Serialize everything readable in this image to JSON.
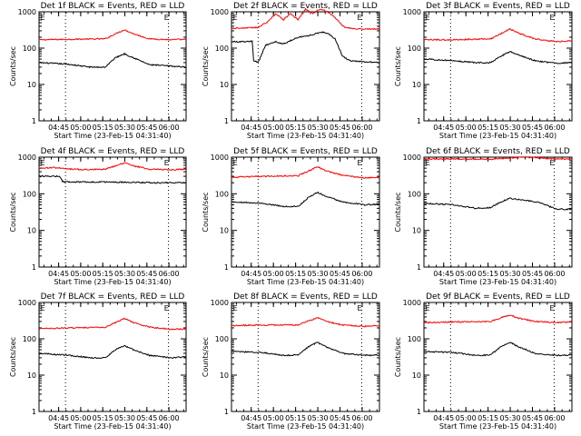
{
  "figure": {
    "background": "#ffffff"
  },
  "colors": {
    "events": "#000000",
    "lld": "#ff0000",
    "axes": "#000000"
  },
  "chart_data": [
    {
      "type": "line",
      "title": "Det 1f BLACK = Events, RED = LLD",
      "xlabel": "Start Time (23-Feb-15 04:31:40)",
      "ylabel": "Counts/sec",
      "yscale": "log",
      "ylim": [
        1,
        1000
      ],
      "y_ticks": [
        1,
        10,
        100,
        1000
      ],
      "x_ticks": [
        "04:45",
        "05:00",
        "05:15",
        "05:30",
        "05:45",
        "06:00"
      ],
      "x_tick_minutes": [
        13.33,
        28.33,
        43.33,
        58.33,
        73.33,
        88.33
      ],
      "xlim_minutes": [
        0,
        100
      ],
      "vlines_minutes": [
        18,
        88
      ],
      "top_marks": [
        "E",
        "E"
      ],
      "top_mark_minutes": [
        1,
        85
      ],
      "grid": false,
      "series": [
        {
          "color": "#ff0000",
          "x_minutes": [
            0,
            20,
            45,
            52,
            58,
            64,
            75,
            90,
            100
          ],
          "values": [
            170,
            175,
            180,
            250,
            320,
            250,
            180,
            170,
            175
          ]
        },
        {
          "color": "#000000",
          "x_minutes": [
            0,
            20,
            35,
            45,
            52,
            58,
            64,
            75,
            90,
            100
          ],
          "values": [
            40,
            36,
            30,
            30,
            55,
            70,
            55,
            35,
            32,
            30
          ]
        }
      ]
    },
    {
      "type": "line",
      "title": "Det 2f BLACK = Events, RED = LLD",
      "xlabel": "Start Time (23-Feb-15 04:31:40)",
      "ylabel": "Counts/sec",
      "yscale": "log",
      "ylim": [
        1,
        1000
      ],
      "y_ticks": [
        1,
        10,
        100,
        1000
      ],
      "x_ticks": [
        "04:45",
        "05:00",
        "05:15",
        "05:30",
        "05:45",
        "06:00"
      ],
      "x_tick_minutes": [
        13.33,
        28.33,
        43.33,
        58.33,
        73.33,
        88.33
      ],
      "xlim_minutes": [
        0,
        100
      ],
      "vlines_minutes": [
        18,
        88
      ],
      "top_marks": [
        "E",
        "E"
      ],
      "top_mark_minutes": [
        1,
        85
      ],
      "grid": false,
      "series": [
        {
          "color": "#ff0000",
          "x_minutes": [
            0,
            10,
            18,
            25,
            30,
            35,
            40,
            45,
            50,
            55,
            60,
            65,
            70,
            75,
            80,
            90,
            100
          ],
          "values": [
            350,
            360,
            370,
            550,
            900,
            600,
            900,
            600,
            1200,
            900,
            1200,
            1000,
            700,
            400,
            350,
            330,
            340
          ]
        },
        {
          "color": "#000000",
          "x_minutes": [
            0,
            10,
            14,
            15,
            17,
            18,
            23,
            30,
            35,
            45,
            55,
            60,
            65,
            70,
            75,
            80,
            90,
            100
          ],
          "values": [
            150,
            150,
            155,
            45,
            42,
            40,
            120,
            150,
            130,
            200,
            230,
            280,
            260,
            180,
            60,
            45,
            42,
            40
          ]
        }
      ]
    },
    {
      "type": "line",
      "title": "Det 3f BLACK = Events, RED = LLD",
      "xlabel": "Start Time (23-Feb-15 04:31:40)",
      "ylabel": "Counts/sec",
      "yscale": "log",
      "ylim": [
        1,
        1000
      ],
      "y_ticks": [
        1,
        10,
        100,
        1000
      ],
      "x_ticks": [
        "04:45",
        "05:00",
        "05:15",
        "05:30",
        "05:45",
        "06:00"
      ],
      "x_tick_minutes": [
        13.33,
        28.33,
        43.33,
        58.33,
        73.33,
        88.33
      ],
      "xlim_minutes": [
        0,
        100
      ],
      "vlines_minutes": [
        18,
        88
      ],
      "top_marks": [
        "E",
        "E"
      ],
      "top_mark_minutes": [
        1,
        85
      ],
      "grid": false,
      "series": [
        {
          "color": "#ff0000",
          "x_minutes": [
            0,
            20,
            45,
            52,
            58,
            64,
            75,
            90,
            100
          ],
          "values": [
            170,
            170,
            180,
            250,
            340,
            260,
            180,
            150,
            160
          ]
        },
        {
          "color": "#000000",
          "x_minutes": [
            0,
            20,
            35,
            45,
            52,
            58,
            64,
            75,
            90,
            100
          ],
          "values": [
            50,
            45,
            40,
            40,
            60,
            80,
            65,
            45,
            38,
            40
          ]
        }
      ]
    },
    {
      "type": "line",
      "title": "Det 4f BLACK = Events, RED = LLD",
      "xlabel": "Start Time (23-Feb-15 04:31:40)",
      "ylabel": "Counts/sec",
      "yscale": "log",
      "ylim": [
        1,
        1000
      ],
      "y_ticks": [
        1,
        10,
        100,
        1000
      ],
      "x_ticks": [
        "04:45",
        "05:00",
        "05:15",
        "05:30",
        "05:45",
        "06:00"
      ],
      "x_tick_minutes": [
        13.33,
        28.33,
        43.33,
        58.33,
        73.33,
        88.33
      ],
      "xlim_minutes": [
        0,
        100
      ],
      "vlines_minutes": [
        18,
        88
      ],
      "top_marks": [
        "E",
        "E"
      ],
      "top_mark_minutes": [
        1,
        85
      ],
      "grid": false,
      "series": [
        {
          "color": "#ff0000",
          "x_minutes": [
            0,
            10,
            18,
            30,
            45,
            52,
            58,
            64,
            75,
            90,
            100
          ],
          "values": [
            500,
            520,
            480,
            460,
            470,
            580,
            700,
            580,
            470,
            450,
            470
          ]
        },
        {
          "color": "#000000",
          "x_minutes": [
            0,
            14,
            16,
            18,
            40,
            60,
            80,
            100
          ],
          "values": [
            300,
            300,
            220,
            210,
            210,
            205,
            200,
            200
          ]
        }
      ]
    },
    {
      "type": "line",
      "title": "Det 5f BLACK = Events, RED = LLD",
      "xlabel": "Start Time (23-Feb-15 04:31:40)",
      "ylabel": "Counts/sec",
      "yscale": "log",
      "ylim": [
        1,
        1000
      ],
      "y_ticks": [
        1,
        10,
        100,
        1000
      ],
      "x_ticks": [
        "04:45",
        "05:00",
        "05:15",
        "05:30",
        "05:45",
        "06:00"
      ],
      "x_tick_minutes": [
        13.33,
        28.33,
        43.33,
        58.33,
        73.33,
        88.33
      ],
      "xlim_minutes": [
        0,
        100
      ],
      "vlines_minutes": [
        18,
        88
      ],
      "top_marks": [
        "E",
        "E"
      ],
      "top_mark_minutes": [
        1,
        85
      ],
      "grid": false,
      "series": [
        {
          "color": "#ff0000",
          "x_minutes": [
            0,
            20,
            45,
            52,
            58,
            64,
            75,
            90,
            100
          ],
          "values": [
            280,
            300,
            310,
            420,
            550,
            420,
            320,
            270,
            280
          ]
        },
        {
          "color": "#000000",
          "x_minutes": [
            0,
            20,
            35,
            45,
            52,
            58,
            64,
            75,
            90,
            100
          ],
          "values": [
            60,
            55,
            45,
            45,
            80,
            110,
            85,
            60,
            50,
            52
          ]
        }
      ]
    },
    {
      "type": "line",
      "title": "Det 6f BLACK = Events, RED = LLD",
      "xlabel": "Start Time (23-Feb-15 04:31:40)",
      "ylabel": "Counts/sec",
      "yscale": "log",
      "ylim": [
        1,
        1000
      ],
      "y_ticks": [
        1,
        10,
        100,
        1000
      ],
      "x_ticks": [
        "04:45",
        "05:00",
        "05:15",
        "05:30",
        "05:45",
        "06:00"
      ],
      "x_tick_minutes": [
        13.33,
        28.33,
        43.33,
        58.33,
        73.33,
        88.33
      ],
      "xlim_minutes": [
        0,
        100
      ],
      "vlines_minutes": [
        18,
        88
      ],
      "top_marks": [
        "E",
        "E"
      ],
      "top_mark_minutes": [
        1,
        85
      ],
      "grid": false,
      "series": [
        {
          "color": "#ff0000",
          "x_minutes": [
            0,
            20,
            45,
            58,
            70,
            85,
            100
          ],
          "values": [
            880,
            900,
            880,
            950,
            1000,
            900,
            880
          ]
        },
        {
          "color": "#000000",
          "x_minutes": [
            0,
            20,
            35,
            45,
            52,
            58,
            64,
            75,
            80,
            85,
            90,
            100
          ],
          "values": [
            55,
            50,
            40,
            42,
            60,
            75,
            70,
            60,
            55,
            45,
            38,
            38
          ]
        }
      ]
    },
    {
      "type": "line",
      "title": "Det 7f BLACK = Events, RED = LLD",
      "xlabel": "Start Time (23-Feb-15 04:31:40)",
      "ylabel": "Counts/sec",
      "yscale": "log",
      "ylim": [
        1,
        1000
      ],
      "y_ticks": [
        1,
        10,
        100,
        1000
      ],
      "x_ticks": [
        "04:45",
        "05:00",
        "05:15",
        "05:30",
        "05:45",
        "06:00"
      ],
      "x_tick_minutes": [
        13.33,
        28.33,
        43.33,
        58.33,
        73.33,
        88.33
      ],
      "xlim_minutes": [
        0,
        100
      ],
      "vlines_minutes": [
        18,
        88
      ],
      "top_marks": [
        "E",
        "E"
      ],
      "top_mark_minutes": [
        1,
        85
      ],
      "grid": false,
      "series": [
        {
          "color": "#ff0000",
          "x_minutes": [
            0,
            20,
            45,
            52,
            58,
            64,
            75,
            90,
            100
          ],
          "values": [
            190,
            200,
            210,
            280,
            360,
            280,
            210,
            180,
            190
          ]
        },
        {
          "color": "#000000",
          "x_minutes": [
            0,
            20,
            35,
            45,
            52,
            58,
            64,
            75,
            90,
            100
          ],
          "values": [
            40,
            35,
            30,
            30,
            50,
            65,
            50,
            35,
            30,
            32
          ]
        }
      ]
    },
    {
      "type": "line",
      "title": "Det 8f BLACK = Events, RED = LLD",
      "xlabel": "Start Time (23-Feb-15 04:31:40)",
      "ylabel": "Counts/sec",
      "yscale": "log",
      "ylim": [
        1,
        1000
      ],
      "y_ticks": [
        1,
        10,
        100,
        1000
      ],
      "x_ticks": [
        "04:45",
        "05:00",
        "05:15",
        "05:30",
        "05:45",
        "06:00"
      ],
      "x_tick_minutes": [
        13.33,
        28.33,
        43.33,
        58.33,
        73.33,
        88.33
      ],
      "xlim_minutes": [
        0,
        100
      ],
      "vlines_minutes": [
        18,
        88
      ],
      "top_marks": [
        "E",
        "E"
      ],
      "top_mark_minutes": [
        1,
        85
      ],
      "grid": false,
      "series": [
        {
          "color": "#ff0000",
          "x_minutes": [
            0,
            20,
            45,
            52,
            58,
            64,
            75,
            90,
            100
          ],
          "values": [
            230,
            240,
            240,
            310,
            380,
            300,
            240,
            220,
            230
          ]
        },
        {
          "color": "#000000",
          "x_minutes": [
            0,
            20,
            35,
            45,
            52,
            58,
            64,
            75,
            90,
            100
          ],
          "values": [
            45,
            42,
            35,
            36,
            60,
            80,
            60,
            40,
            35,
            36
          ]
        }
      ]
    },
    {
      "type": "line",
      "title": "Det 9f BLACK = Events, RED = LLD",
      "xlabel": "Start Time (23-Feb-15 04:31:40)",
      "ylabel": "Counts/sec",
      "yscale": "log",
      "ylim": [
        1,
        1000
      ],
      "y_ticks": [
        1,
        10,
        100,
        1000
      ],
      "x_ticks": [
        "04:45",
        "05:00",
        "05:15",
        "05:30",
        "05:45",
        "06:00"
      ],
      "x_tick_minutes": [
        13.33,
        28.33,
        43.33,
        58.33,
        73.33,
        88.33
      ],
      "xlim_minutes": [
        0,
        100
      ],
      "vlines_minutes": [
        18,
        88
      ],
      "top_marks": [
        "E",
        "E"
      ],
      "top_mark_minutes": [
        1,
        85
      ],
      "grid": false,
      "series": [
        {
          "color": "#ff0000",
          "x_minutes": [
            0,
            20,
            45,
            52,
            58,
            64,
            75,
            90,
            100
          ],
          "values": [
            280,
            290,
            300,
            380,
            450,
            370,
            300,
            280,
            290
          ]
        },
        {
          "color": "#000000",
          "x_minutes": [
            0,
            20,
            35,
            45,
            52,
            58,
            64,
            75,
            90,
            100
          ],
          "values": [
            45,
            42,
            35,
            36,
            60,
            80,
            60,
            40,
            35,
            36
          ]
        }
      ]
    }
  ]
}
